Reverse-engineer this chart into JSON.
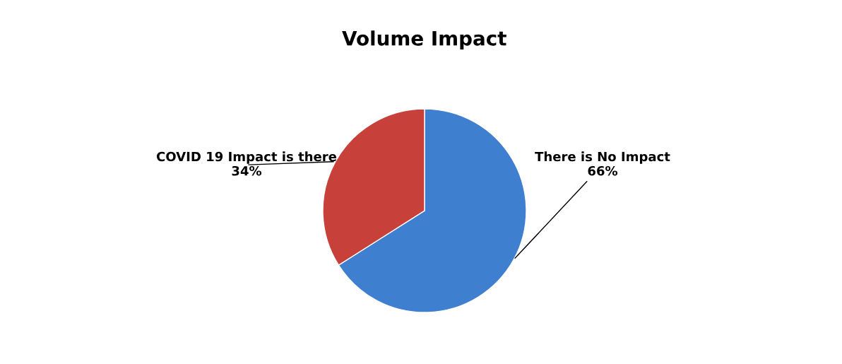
{
  "chart_data": {
    "type": "pie",
    "title": "Volume Impact",
    "categories": [
      "There is No Impact",
      "COVID 19 Impact is there"
    ],
    "values": [
      66,
      34
    ],
    "colors": [
      "#3f7fd0",
      "#c8403a"
    ],
    "value_labels": [
      "66%",
      "34%"
    ],
    "legend": false
  }
}
